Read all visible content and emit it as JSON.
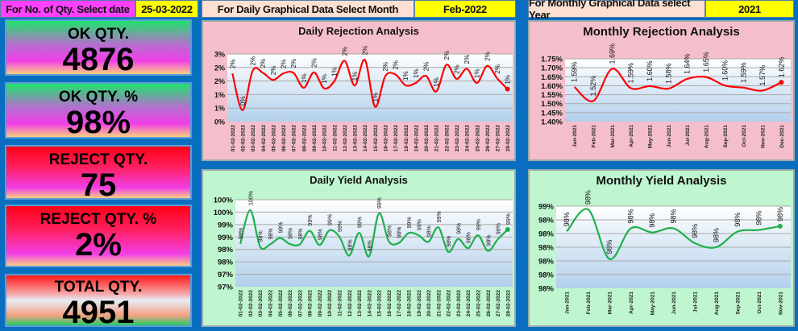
{
  "header": {
    "date_label": "For No. of Qty. Select date",
    "date_value": "25-03-2022",
    "month_label": "For Daily Graphical Data Select Month",
    "month_value": "Feb-2022",
    "year_label": "For Monthly Graphical Data select Year",
    "year_value": "2021"
  },
  "kpis": [
    {
      "label": "OK QTY.",
      "value": "4876"
    },
    {
      "label": "OK QTY. %",
      "value": "98%"
    },
    {
      "label": "REJECT QTY.",
      "value": "75"
    },
    {
      "label": "REJECT QTY. %",
      "value": "2%"
    },
    {
      "label": "TOTAL QTY.",
      "value": "4951"
    }
  ],
  "colors": {
    "background": "#0a6ec0",
    "rejection_line": "#ff0000",
    "yield_line": "#1fb04a",
    "select_yellow": "#ffff00",
    "select_magenta": "#ff40ff"
  },
  "chart_data": [
    {
      "type": "line",
      "title": "Daily Rejection Analysis",
      "smooth": true,
      "grid": true,
      "categories": [
        "01-02-2022",
        "02-02-2022",
        "03-02-2022",
        "04-02-2022",
        "05-02-2022",
        "06-02-2022",
        "07-02-2022",
        "08-02-2022",
        "09-02-2022",
        "10-02-2022",
        "11-02-2022",
        "12-02-2022",
        "13-02-2022",
        "14-02-2022",
        "15-02-2022",
        "16-02-2022",
        "17-02-2022",
        "18-02-2022",
        "19-02-2022",
        "20-02-2022",
        "21-02-2022",
        "22-02-2022",
        "23-02-2022",
        "24-02-2022",
        "25-02-2022",
        "26-02-2022",
        "27-02-2022",
        "28-02-2022"
      ],
      "values": [
        1.78,
        0.42,
        1.89,
        1.8,
        1.54,
        1.78,
        1.8,
        1.25,
        1.82,
        1.23,
        1.49,
        2.25,
        1.33,
        2.28,
        0.55,
        1.68,
        1.74,
        1.34,
        1.43,
        1.69,
        1.11,
        2.1,
        1.58,
        1.95,
        1.43,
        2.06,
        1.59,
        1.2
      ],
      "data_labels": [
        "2%",
        "0%",
        "2%",
        "2%",
        "2%",
        "2%",
        "2%",
        "1%",
        "2%",
        "1%",
        "1%",
        "2%",
        "1%",
        "2%",
        "1%",
        "2%",
        "2%",
        "1%",
        "1%",
        "2%",
        "1%",
        "2%",
        "2%",
        "2%",
        "1%",
        "2%",
        "2%",
        "1%"
      ],
      "ylim": [
        0,
        2.5
      ],
      "yticks": [
        "0%",
        "1%",
        "1%",
        "2%",
        "2%",
        "3%"
      ]
    },
    {
      "type": "line",
      "title": "Daily Yield Analysis",
      "smooth": true,
      "grid": true,
      "categories": [
        "01-02-2022",
        "02-02-2022",
        "03-02-2022",
        "04-02-2022",
        "05-02-2022",
        "06-02-2022",
        "07-02-2022",
        "08-02-2022",
        "09-02-2022",
        "10-02-2022",
        "11-02-2022",
        "12-02-2022",
        "13-02-2022",
        "14-02-2022",
        "15-02-2022",
        "16-02-2022",
        "17-02-2022",
        "18-02-2022",
        "19-02-2022",
        "20-02-2022",
        "21-02-2022",
        "22-02-2022",
        "23-02-2022",
        "24-02-2022",
        "25-02-2022",
        "26-02-2022",
        "27-02-2022",
        "28-02-2022"
      ],
      "values": [
        98.22,
        99.58,
        98.11,
        98.2,
        98.46,
        98.22,
        98.2,
        98.75,
        98.18,
        98.77,
        98.51,
        97.75,
        98.67,
        97.72,
        99.45,
        98.32,
        98.26,
        98.66,
        98.57,
        98.31,
        98.89,
        97.9,
        98.42,
        98.05,
        98.57,
        97.94,
        98.41,
        98.8
      ],
      "data_labels": [
        "98%",
        "100%",
        "98%",
        "98%",
        "98%",
        "98%",
        "98%",
        "99%",
        "98%",
        "99%",
        "99%",
        "98%",
        "99%",
        "98%",
        "99%",
        "98%",
        "98%",
        "99%",
        "99%",
        "98%",
        "99%",
        "98%",
        "98%",
        "98%",
        "99%",
        "98%",
        "98%",
        "99%"
      ],
      "ylim": [
        96.5,
        100
      ],
      "yticks": [
        "97%",
        "97%",
        "98%",
        "98%",
        "99%",
        "99%",
        "100%",
        "100%"
      ]
    },
    {
      "type": "line",
      "title": "Monthly Rejection Analysis",
      "smooth": true,
      "grid": true,
      "categories": [
        "Jan-2021",
        "Feb-2021",
        "Mar-2021",
        "Apr-2021",
        "May-2021",
        "Jun-2021",
        "Jul-2021",
        "Aug-2021",
        "Sep-2021",
        "Oct-2021",
        "Nov-2021",
        "Dec-2021"
      ],
      "values": [
        1.593,
        1.515,
        1.694,
        1.586,
        1.598,
        1.584,
        1.638,
        1.648,
        1.601,
        1.589,
        1.573,
        1.619
      ],
      "data_labels": [
        "1.59%",
        "1.52%",
        "1.69%",
        "1.59%",
        "1.60%",
        "1.58%",
        "1.64%",
        "1.65%",
        "1.60%",
        "1.59%",
        "1.57%",
        "1.62%"
      ],
      "ylim": [
        1.4,
        1.75
      ],
      "yticks": [
        "1.40%",
        "1.45%",
        "1.50%",
        "1.55%",
        "1.60%",
        "1.65%",
        "1.70%",
        "1.75%"
      ]
    },
    {
      "type": "line",
      "title": "Monthly Yield Analysis",
      "smooth": true,
      "grid": true,
      "categories": [
        "Jan-2021",
        "Feb-2021",
        "Mar-2021",
        "Apr-2021",
        "May-2021",
        "Jun-2021",
        "Jul-2021",
        "Aug-2021",
        "Sep-2021",
        "Oct-2021",
        "Nov-2021"
      ],
      "values": [
        98.408,
        98.488,
        98.307,
        98.419,
        98.404,
        98.419,
        98.365,
        98.35,
        98.407,
        98.413,
        98.427
      ],
      "data_labels": [
        "98%",
        "98%",
        "98%",
        "98%",
        "98%",
        "98%",
        "98%",
        "98%",
        "98%",
        "98%",
        "98%"
      ],
      "ylim": [
        98.2,
        98.5
      ],
      "yticks": [
        "98%",
        "98%",
        "98%",
        "98%",
        "98%",
        "98%",
        "99%"
      ]
    }
  ]
}
